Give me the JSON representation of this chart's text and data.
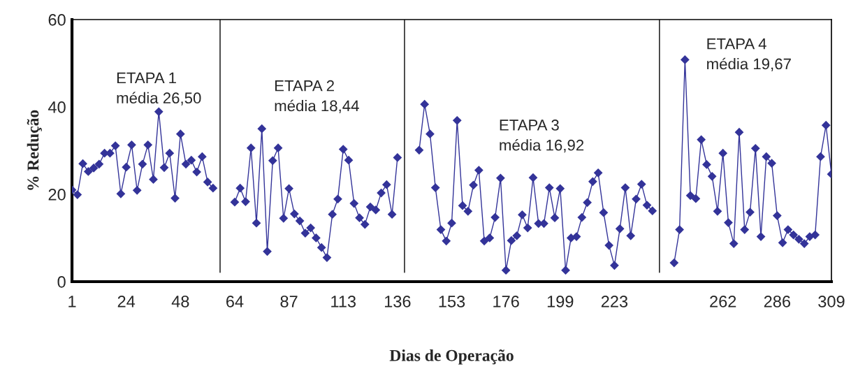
{
  "chart_data": {
    "type": "line",
    "xlabel": "Dias de Operação",
    "ylabel": "% Redução",
    "categories": [
      "1",
      null,
      null,
      null,
      null,
      null,
      null,
      null,
      null,
      null,
      "24",
      null,
      null,
      null,
      null,
      null,
      null,
      null,
      null,
      null,
      "48",
      null,
      null,
      null,
      null,
      null,
      null,
      null,
      null,
      null,
      "64",
      null,
      null,
      null,
      null,
      null,
      null,
      null,
      null,
      null,
      "87",
      null,
      null,
      null,
      null,
      null,
      null,
      null,
      null,
      null,
      "113",
      null,
      null,
      null,
      null,
      null,
      null,
      null,
      null,
      null,
      "136",
      null,
      null,
      null,
      null,
      null,
      null,
      null,
      null,
      null,
      "153",
      null,
      null,
      null,
      null,
      null,
      null,
      null,
      null,
      null,
      "176",
      null,
      null,
      null,
      null,
      null,
      null,
      null,
      null,
      null,
      "199",
      null,
      null,
      null,
      null,
      null,
      null,
      null,
      null,
      null,
      "223",
      null,
      null,
      null,
      null,
      null,
      null,
      null,
      null,
      null,
      null,
      null,
      null,
      null,
      null,
      null,
      null,
      null,
      null,
      null,
      "262",
      null,
      null,
      null,
      null,
      null,
      null,
      null,
      null,
      null,
      "286",
      null,
      null,
      null,
      null,
      null,
      null,
      null,
      null,
      null,
      "309"
    ],
    "series": [
      {
        "color": "#333399",
        "values": [
          21.0,
          19.9,
          27.0,
          25.2,
          26.0,
          26.9,
          29.4,
          29.4,
          31.1,
          20.1,
          26.2,
          31.3,
          20.9,
          26.9,
          31.3,
          23.4,
          38.9,
          26.1,
          29.4,
          19.1,
          33.8,
          26.9,
          27.8,
          25.1,
          28.6,
          22.8,
          21.4,
          null,
          null,
          null,
          18.2,
          21.4,
          18.3,
          30.6,
          13.4,
          35.0,
          6.9,
          27.7,
          30.6,
          14.5,
          21.3,
          15.5,
          13.9,
          11.1,
          12.3,
          10.0,
          7.8,
          5.5,
          15.4,
          18.9,
          30.3,
          27.8,
          17.9,
          14.6,
          13.1,
          17.1,
          16.4,
          20.3,
          22.2,
          15.4,
          28.4,
          null,
          null,
          null,
          30.1,
          40.6,
          33.8,
          21.5,
          11.9,
          9.3,
          13.4,
          36.9,
          17.4,
          16.1,
          22.1,
          25.5,
          9.3,
          10.0,
          14.7,
          23.7,
          2.6,
          9.4,
          10.5,
          15.3,
          12.3,
          23.8,
          13.3,
          13.3,
          21.5,
          14.6,
          21.3,
          2.6,
          10.0,
          10.3,
          14.7,
          18.1,
          22.9,
          24.9,
          15.8,
          8.3,
          3.7,
          12.1,
          21.5,
          10.5,
          18.9,
          22.3,
          17.5,
          16.2,
          null,
          null,
          null,
          4.3,
          11.9,
          50.8,
          19.7,
          19.0,
          32.5,
          26.8,
          24.1,
          16.1,
          29.4,
          13.5,
          8.7,
          34.2,
          11.9,
          15.9,
          30.5,
          10.3,
          28.6,
          27.1,
          15.1,
          8.9,
          11.9,
          10.7,
          9.7,
          8.7,
          10.3,
          10.7,
          28.6,
          35.8,
          24.6
        ]
      }
    ],
    "ylim": [
      0,
      60
    ],
    "yticks": [
      0,
      20,
      40,
      60
    ],
    "marker": "diamond",
    "grid": false,
    "legend": false,
    "annotations": [
      "ETAPA 1\nmédia 26,50",
      "ETAPA 2\nmédia 18,44",
      "ETAPA 3\nmédia 16,92",
      "ETAPA 4\nmédia 19,67"
    ]
  }
}
